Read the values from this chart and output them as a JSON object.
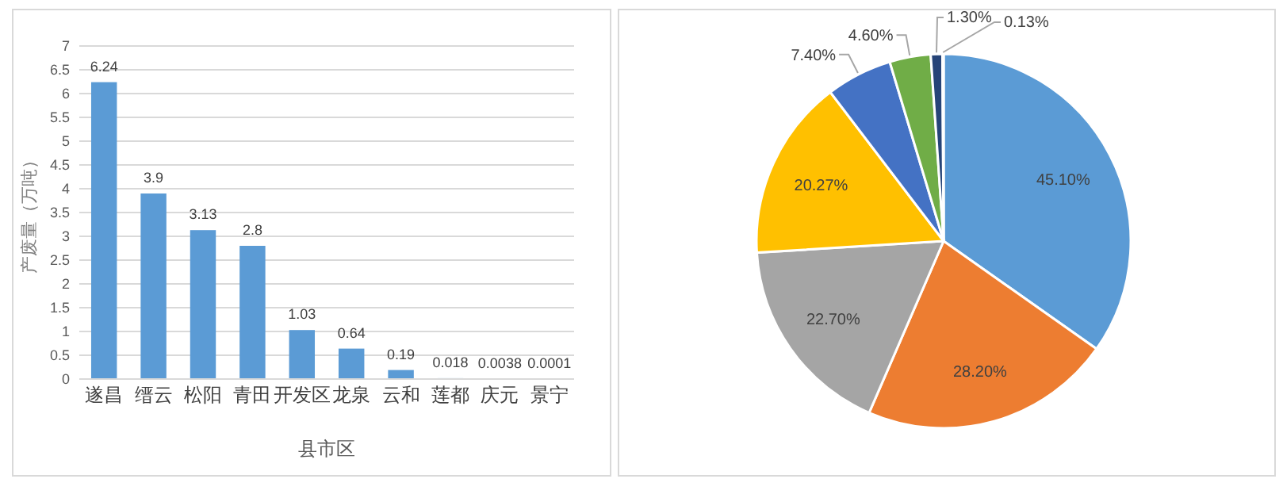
{
  "chart_data": [
    {
      "type": "bar",
      "xlabel": "县市区",
      "ylabel": "产废量（万吨）",
      "categories": [
        "遂昌",
        "缙云",
        "松阳",
        "青田",
        "开发区",
        "龙泉",
        "云和",
        "莲都",
        "庆元",
        "景宁"
      ],
      "values": [
        6.24,
        3.9,
        3.13,
        2.8,
        1.03,
        0.64,
        0.19,
        0.018,
        0.0038,
        0.0001
      ],
      "color": "#5b9bd5",
      "ylim": [
        0,
        7
      ],
      "yticks": [
        0,
        0.5,
        1,
        1.5,
        2,
        2.5,
        3,
        3.5,
        4,
        4.5,
        5,
        5.5,
        6,
        6.5,
        7
      ],
      "grid": "y",
      "data_labels": true
    },
    {
      "type": "pie",
      "categories": [
        null,
        null,
        null,
        null,
        null,
        null,
        null,
        null
      ],
      "values": [
        45.1,
        28.2,
        22.7,
        20.27,
        7.4,
        4.6,
        1.3,
        0.13
      ],
      "colors": [
        "#5b9bd5",
        "#ed7d31",
        "#a5a5a5",
        "#ffc000",
        "#4472c4",
        "#70ad47",
        "#264478",
        "#9e480e"
      ],
      "value_labels": [
        "45.10%",
        "28.20%",
        "22.70%",
        "20.27%",
        "7.40%",
        "4.60%",
        "1.30%",
        "0.13%"
      ]
    }
  ]
}
